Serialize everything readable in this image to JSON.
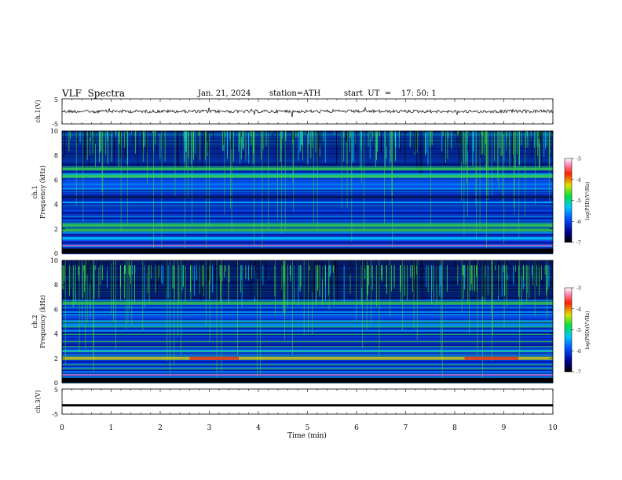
{
  "header": {
    "title": "VLF  Spectra",
    "date": "Jan. 21, 2024",
    "station": "station=ATH",
    "start": "start  UT  =    17: 50: 1"
  },
  "chart_data": [
    {
      "type": "line",
      "ylabel": "ch.1(V)",
      "ylim": [
        -5,
        5
      ],
      "yticks": [
        "5",
        "-5"
      ],
      "xlim": [
        0,
        10
      ],
      "series": [
        {
          "description": "noisy waveform near 0 V",
          "approx_level": 0.0
        }
      ]
    },
    {
      "type": "heatmap",
      "ylabel_line1": "ch.1",
      "ylabel_line2": "Frequency (kHz)",
      "ylim": [
        0,
        10
      ],
      "yticks": [
        "0",
        "2",
        "4",
        "6",
        "8",
        "10"
      ],
      "xlim": [
        0,
        10
      ],
      "colorbar": {
        "label": "log(PSD)(V²/Hz)",
        "ticks": [
          "-3",
          "-4",
          "-5",
          "-6",
          "-7"
        ],
        "range": [
          -7,
          -3
        ]
      },
      "bands": [
        {
          "freq_kHz": 1.9,
          "level": -5.2
        },
        {
          "freq_kHz": 2.3,
          "level": -5.4
        },
        {
          "freq_kHz": 6.3,
          "level": -5.6
        },
        {
          "freq_kHz": 6.9,
          "level": -5.4
        }
      ]
    },
    {
      "type": "heatmap",
      "ylabel_line1": "ch.2",
      "ylabel_line2": "Frequency (kHz)",
      "ylim": [
        0,
        10
      ],
      "yticks": [
        "0",
        "2",
        "4",
        "6",
        "8",
        "10"
      ],
      "xlim": [
        0,
        10
      ],
      "colorbar": {
        "label": "log(PSD)(V²/Hz)",
        "ticks": [
          "-3",
          "-4",
          "-5",
          "-6",
          "-7"
        ],
        "range": [
          -7,
          -3
        ]
      },
      "bands": [
        {
          "freq_kHz": 2.0,
          "level": -4.2
        },
        {
          "freq_kHz": 6.5,
          "level": -5.6
        }
      ]
    },
    {
      "type": "line",
      "ylabel": "ch.3(V)",
      "ylim": [
        -5,
        5
      ],
      "yticks": [
        "5",
        "-5"
      ],
      "xlim": [
        0,
        10
      ],
      "xlabel": "Time  (min)",
      "xticks": [
        "0",
        "1",
        "2",
        "3",
        "4",
        "5",
        "6",
        "7",
        "8",
        "9",
        "10"
      ],
      "series": [
        {
          "description": "flat line",
          "approx_level": -1.5
        }
      ]
    }
  ],
  "colors": {
    "spectrogram_bg": "#0a3cc8",
    "band_green": "#3cdc3c",
    "band_yellow": "#e6e600",
    "band_red": "#e03020",
    "dark": "#000020"
  }
}
